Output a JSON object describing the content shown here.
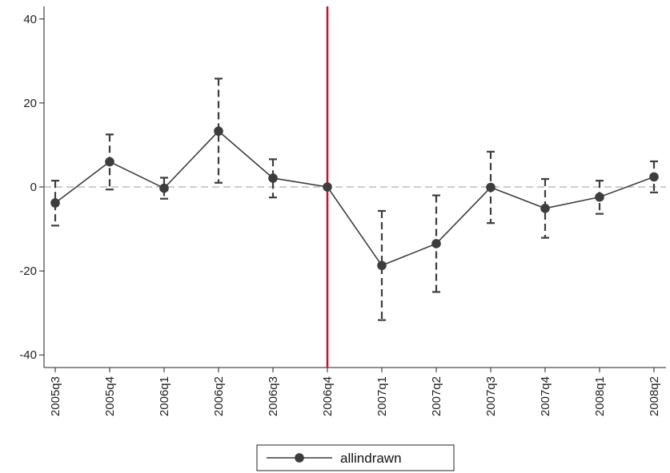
{
  "chart_data": {
    "type": "line",
    "title": "",
    "xlabel": "",
    "ylabel": "",
    "categories": [
      "2005q3",
      "2005q4",
      "2006q1",
      "2006q2",
      "2006q3",
      "2006q4",
      "2007q1",
      "2007q2",
      "2007q3",
      "2007q4",
      "2008q1",
      "2008q2"
    ],
    "series": [
      {
        "name": "allindrawn",
        "values": [
          -3.8,
          6.0,
          -0.3,
          13.3,
          2.1,
          0.0,
          -18.7,
          -13.5,
          -0.1,
          -5.1,
          -2.4,
          2.4
        ],
        "ci_low": [
          -9.2,
          -0.6,
          -2.8,
          1.0,
          -2.5,
          0.0,
          -31.7,
          -25.0,
          -8.6,
          -12.1,
          -6.4,
          -1.3
        ],
        "ci_high": [
          1.5,
          12.5,
          2.2,
          25.8,
          6.6,
          0.0,
          -5.7,
          -2.0,
          8.4,
          1.9,
          1.5,
          6.1
        ],
        "color": "#3d3d3d"
      }
    ],
    "ylim": [
      -43,
      43
    ],
    "yticks": [
      -40,
      -20,
      0,
      20,
      40
    ],
    "reference_line": {
      "y": 0,
      "style": "dashed",
      "color": "#9a9a9a"
    },
    "event_line": {
      "category": "2006q4",
      "color": "#c8102e"
    },
    "grid": false,
    "legend": {
      "position": "bottom-center"
    }
  }
}
